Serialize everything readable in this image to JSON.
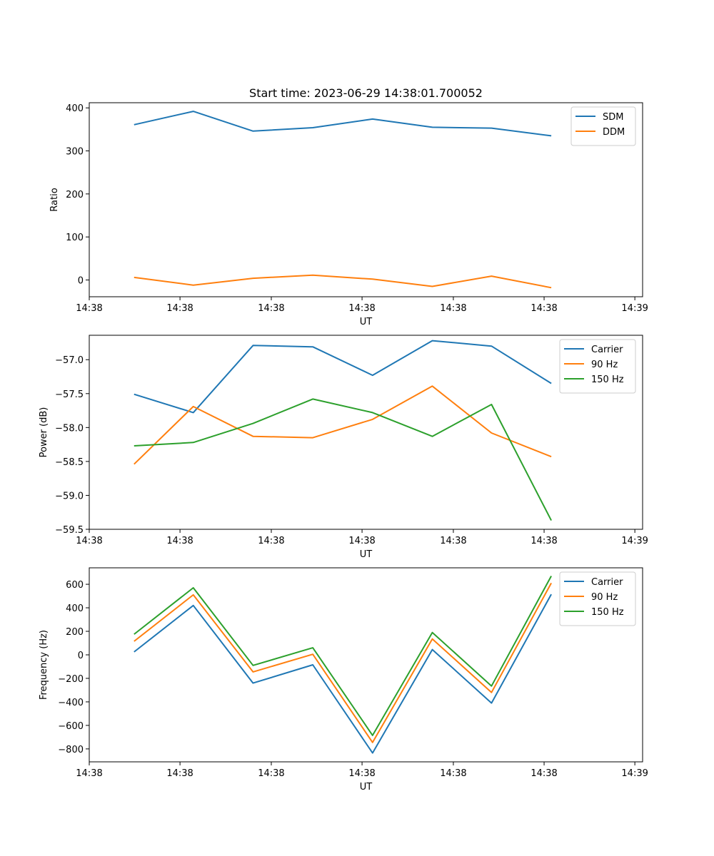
{
  "chart_data": [
    {
      "type": "line",
      "title": "Start time: 2023-06-29 14:38:01.700052",
      "xlabel": "UT",
      "ylabel": "Ratio",
      "x": [
        "14:38:01.70",
        "14:38:02.70",
        "14:38:03.70",
        "14:38:04.70",
        "14:38:05.70",
        "14:38:06.70",
        "14:38:07.70",
        "14:38:08.70"
      ],
      "xlim": [
        0,
        1
      ],
      "x_positions": [
        0.081,
        0.188,
        0.296,
        0.404,
        0.512,
        0.62,
        0.727,
        0.835
      ],
      "xticks": [
        0,
        0.164,
        0.329,
        0.493,
        0.658,
        0.822,
        0.986
      ],
      "xtick_labels": [
        "14:38",
        "14:38",
        "14:38",
        "14:38",
        "14:38",
        "14:38",
        "14:39"
      ],
      "ylim": [
        -39,
        412
      ],
      "yticks": [
        0,
        100,
        200,
        300,
        400
      ],
      "ytick_labels": [
        "0",
        "100",
        "200",
        "300",
        "400"
      ],
      "legend_position": "top-right",
      "grid": false,
      "series": [
        {
          "name": "SDM",
          "color": "#1f77b4",
          "values": [
            361,
            392,
            346,
            354,
            374,
            355,
            353,
            335
          ]
        },
        {
          "name": "DDM",
          "color": "#ff7f0e",
          "values": [
            6,
            -12,
            4,
            11,
            2,
            -15,
            9,
            -18
          ]
        }
      ]
    },
    {
      "type": "line",
      "title": "",
      "xlabel": "UT",
      "ylabel": "Power (dB)",
      "x": [
        "14:38:01.70",
        "14:38:02.70",
        "14:38:03.70",
        "14:38:04.70",
        "14:38:05.70",
        "14:38:06.70",
        "14:38:07.70",
        "14:38:08.70"
      ],
      "xlim": [
        0,
        1
      ],
      "x_positions": [
        0.081,
        0.188,
        0.296,
        0.404,
        0.512,
        0.62,
        0.727,
        0.835
      ],
      "xticks": [
        0,
        0.164,
        0.329,
        0.493,
        0.658,
        0.822,
        0.986
      ],
      "xtick_labels": [
        "14:38",
        "14:38",
        "14:38",
        "14:38",
        "14:38",
        "14:38",
        "14:39"
      ],
      "ylim": [
        -59.5,
        -56.64
      ],
      "yticks": [
        -59.5,
        -59.0,
        -58.5,
        -58.0,
        -57.5,
        -57.0
      ],
      "ytick_labels": [
        "−59.5",
        "−59.0",
        "−58.5",
        "−58.0",
        "−57.5",
        "−57.0"
      ],
      "legend_position": "top-right",
      "grid": false,
      "series": [
        {
          "name": "Carrier",
          "color": "#1f77b4",
          "values": [
            -57.51,
            -57.78,
            -56.79,
            -56.81,
            -57.23,
            -56.72,
            -56.8,
            -57.35
          ]
        },
        {
          "name": "90 Hz",
          "color": "#ff7f0e",
          "values": [
            -58.54,
            -57.69,
            -58.13,
            -58.15,
            -57.88,
            -57.39,
            -58.08,
            -58.43
          ]
        },
        {
          "name": "150 Hz",
          "color": "#2ca02c",
          "values": [
            -58.27,
            -58.22,
            -57.94,
            -57.58,
            -57.78,
            -58.13,
            -57.66,
            -59.37
          ]
        }
      ]
    },
    {
      "type": "line",
      "title": "",
      "xlabel": "UT",
      "ylabel": "Frequency (Hz)",
      "x": [
        "14:38:01.70",
        "14:38:02.70",
        "14:38:03.70",
        "14:38:04.70",
        "14:38:05.70",
        "14:38:06.70",
        "14:38:07.70",
        "14:38:08.70"
      ],
      "xlim": [
        0,
        1
      ],
      "x_positions": [
        0.081,
        0.188,
        0.296,
        0.404,
        0.512,
        0.62,
        0.727,
        0.835
      ],
      "xticks": [
        0,
        0.164,
        0.329,
        0.493,
        0.658,
        0.822,
        0.986
      ],
      "xtick_labels": [
        "14:38",
        "14:38",
        "14:38",
        "14:38",
        "14:38",
        "14:38",
        "14:39"
      ],
      "ylim": [
        -910,
        740
      ],
      "yticks": [
        -800,
        -600,
        -400,
        -200,
        0,
        200,
        400,
        600
      ],
      "ytick_labels": [
        "−800",
        "−600",
        "−400",
        "−200",
        "0",
        "200",
        "400",
        "600"
      ],
      "legend_position": "top-right",
      "grid": false,
      "series": [
        {
          "name": "Carrier",
          "color": "#1f77b4",
          "values": [
            25,
            420,
            -240,
            -85,
            -835,
            45,
            -410,
            515
          ]
        },
        {
          "name": "90 Hz",
          "color": "#ff7f0e",
          "values": [
            115,
            510,
            -145,
            5,
            -745,
            135,
            -320,
            610
          ]
        },
        {
          "name": "150 Hz",
          "color": "#2ca02c",
          "values": [
            175,
            570,
            -90,
            60,
            -685,
            190,
            -265,
            670
          ]
        }
      ]
    }
  ]
}
